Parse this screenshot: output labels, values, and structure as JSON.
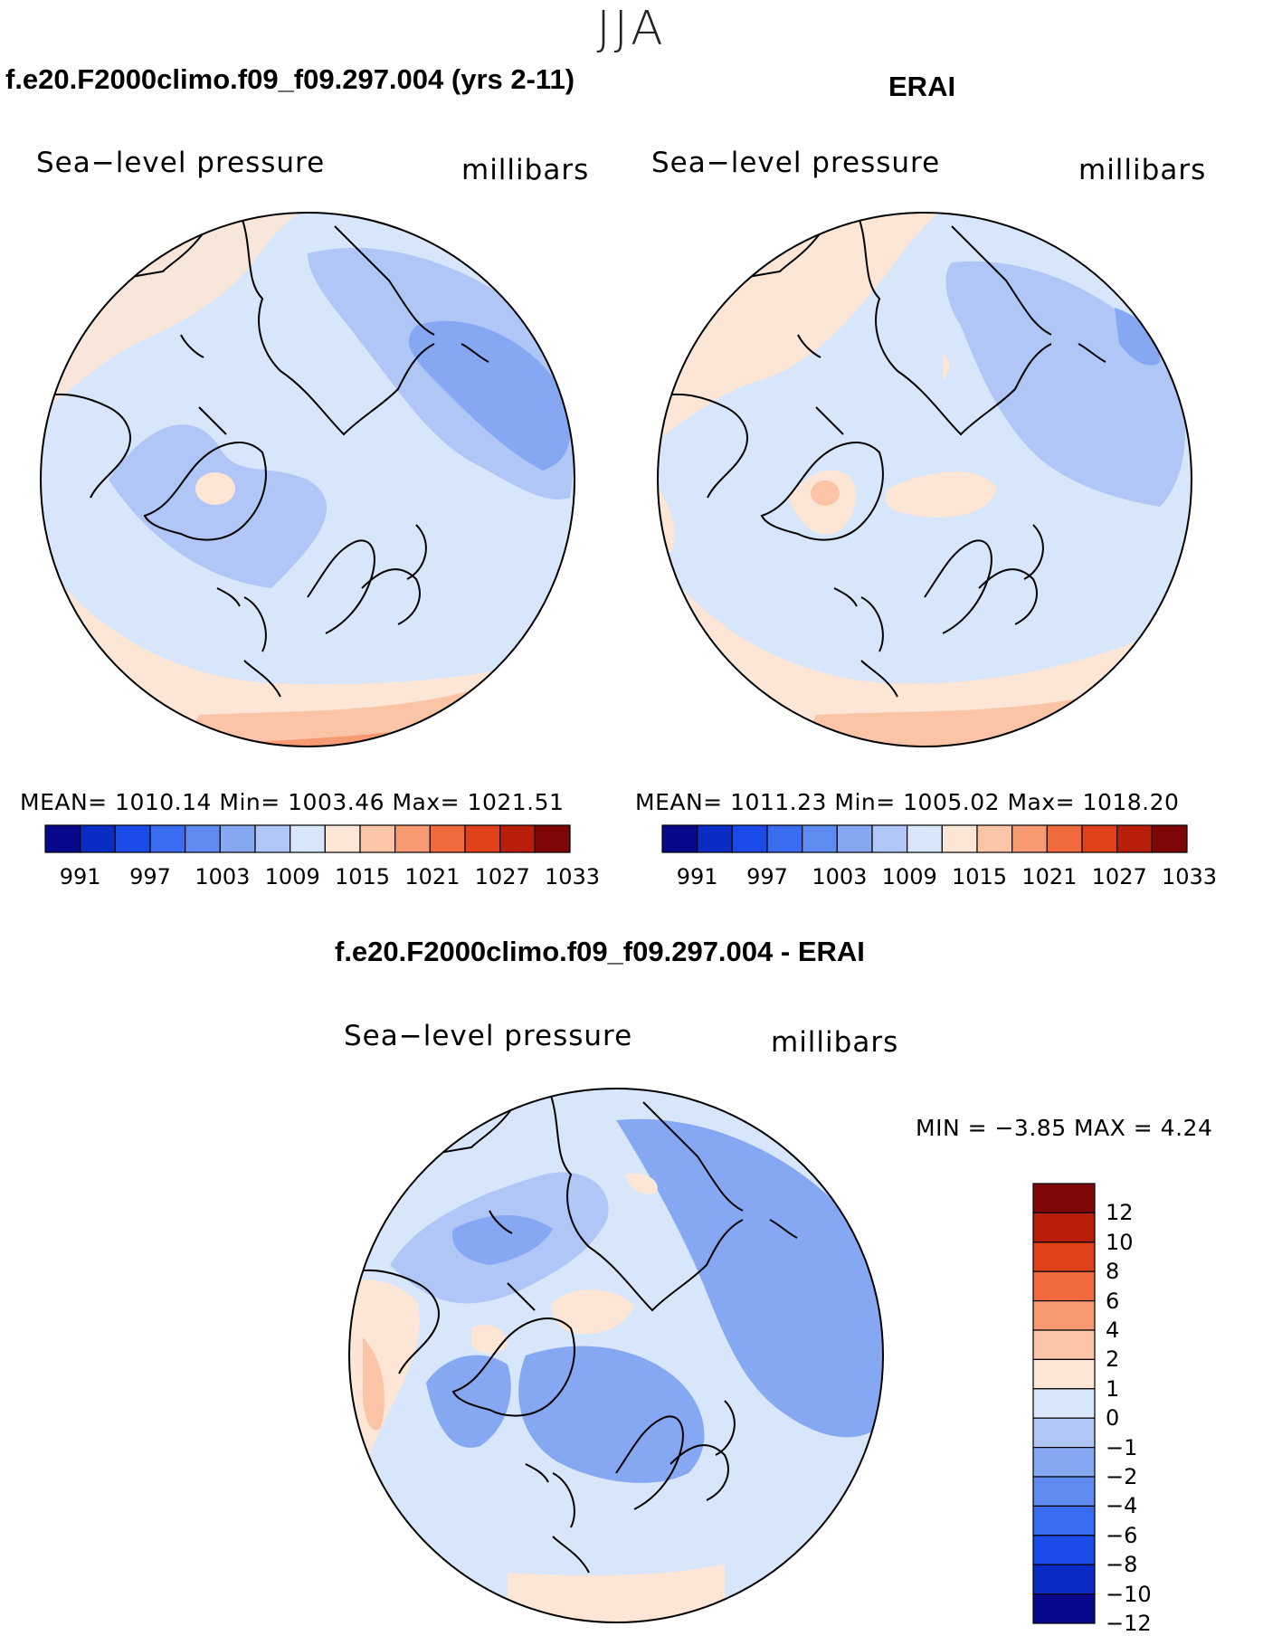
{
  "season_title": "JJA",
  "panel_model": {
    "title": "f.e20.F2000climo.f09_f09.297.004 (yrs 2-11)",
    "variable": "Sea−level pressure",
    "units": "millibars",
    "stats": "MEAN=  1010.14   Min=  1003.46   Max=  1021.51"
  },
  "panel_obs": {
    "title": "ERAI",
    "variable": "Sea−level pressure",
    "units": "millibars",
    "stats": "MEAN=  1011.23   Min=  1005.02   Max=  1018.20"
  },
  "panel_diff": {
    "title": "f.e20.F2000climo.f09_f09.297.004 - ERAI",
    "variable": "Sea−level pressure",
    "units": "millibars",
    "minmax": "MIN =   −3.85  MAX =     4.24"
  },
  "colorbar_main": {
    "colors": [
      "#08088a",
      "#0a2bc4",
      "#1a4ae8",
      "#3a6cf0",
      "#5f8bf0",
      "#86a8f3",
      "#b0c6f7",
      "#d8e6fb",
      "#fde6d6",
      "#fbc4a6",
      "#f79a72",
      "#f06a3e",
      "#e0401a",
      "#b81e0a",
      "#7e0606"
    ],
    "labels": [
      "991",
      "997",
      "1003",
      "1009",
      "1015",
      "1021",
      "1027",
      "1033"
    ]
  },
  "colorbar_diff": {
    "colors": [
      "#7e0606",
      "#b81e0a",
      "#e0401a",
      "#f06a3e",
      "#f79a72",
      "#fbc4a6",
      "#fde6d6",
      "#d8e6fb",
      "#b0c6f7",
      "#86a8f3",
      "#5f8bf0",
      "#3a6cf0",
      "#1a4ae8",
      "#0a2bc4",
      "#08088a"
    ],
    "labels": [
      "12",
      "10",
      "8",
      "6",
      "4",
      "2",
      "1",
      "0",
      "−1",
      "−2",
      "−4",
      "−6",
      "−8",
      "−10",
      "−12"
    ]
  }
}
